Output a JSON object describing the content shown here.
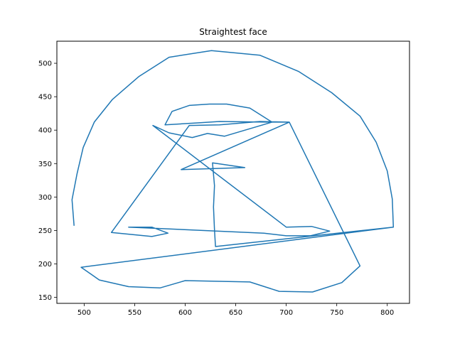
{
  "chart_data": {
    "type": "line",
    "title": "Straightest face",
    "xlabel": "",
    "ylabel": "",
    "xlim": [
      473,
      822
    ],
    "ylim": [
      141,
      533
    ],
    "xticks": [
      500,
      550,
      600,
      650,
      700,
      750,
      800
    ],
    "yticks": [
      150,
      200,
      250,
      300,
      350,
      400,
      450,
      500
    ],
    "grid": false,
    "series": [
      {
        "color": "#1f77b4",
        "points": [
          [
            490,
            257
          ],
          [
            488,
            296
          ],
          [
            493,
            335
          ],
          [
            499,
            374
          ],
          [
            510,
            412
          ],
          [
            528,
            446
          ],
          [
            554,
            480
          ],
          [
            584,
            509
          ],
          [
            626,
            519
          ],
          [
            674,
            512
          ],
          [
            712,
            488
          ],
          [
            745,
            456
          ],
          [
            773,
            421
          ],
          [
            789,
            382
          ],
          [
            800,
            339
          ],
          [
            805,
            297
          ],
          [
            806,
            255
          ],
          [
            630,
            226
          ],
          [
            629,
            251
          ],
          [
            628,
            285
          ],
          [
            629,
            317
          ],
          [
            627,
            351
          ],
          [
            659,
            344
          ],
          [
            596,
            341
          ],
          [
            703,
            412
          ],
          [
            680,
            412
          ],
          [
            634,
            413
          ],
          [
            615,
            411
          ],
          [
            580,
            408
          ],
          [
            587,
            428
          ],
          [
            604,
            437
          ],
          [
            624,
            439
          ],
          [
            641,
            439
          ],
          [
            664,
            433
          ],
          [
            686,
            412
          ],
          [
            639,
            391
          ],
          [
            622,
            395
          ],
          [
            607,
            389
          ],
          [
            584,
            396
          ],
          [
            568,
            407
          ],
          [
            700,
            255
          ],
          [
            725,
            256
          ],
          [
            743,
            249
          ],
          [
            724,
            242
          ],
          [
            700,
            242
          ],
          [
            678,
            246
          ],
          [
            544,
            255
          ],
          [
            567,
            255
          ],
          [
            583,
            246
          ],
          [
            567,
            241
          ],
          [
            527,
            247
          ],
          [
            604,
            407
          ],
          [
            634,
            408
          ],
          [
            674,
            413
          ],
          [
            703,
            412
          ],
          [
            773,
            197
          ],
          [
            755,
            172
          ],
          [
            726,
            158
          ],
          [
            693,
            159
          ],
          [
            664,
            173
          ],
          [
            600,
            175
          ],
          [
            575,
            164
          ],
          [
            544,
            166
          ],
          [
            515,
            176
          ],
          [
            497,
            195
          ],
          [
            806,
            255
          ]
        ]
      }
    ]
  }
}
